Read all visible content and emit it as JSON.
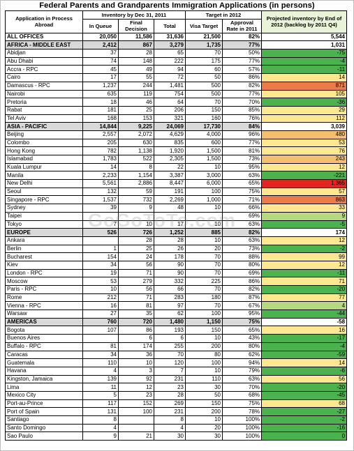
{
  "title": "Federal Parents and Grandparents Immigration Applications  (in persons)",
  "watermark": "GoGoToTo.com",
  "header": {
    "col_app": "Application in Process Abroad",
    "group_inventory": "Inventory by Dec 31, 2011",
    "group_target": "Target in 2012",
    "proj_title": "Projected inventory by End of 2012 (backlog by 2011 Q4)",
    "in_queue": "In Queue",
    "final_decision": "Final Decision",
    "total": "Total",
    "visa_target": "Visa Target",
    "approval_rate": "Approval Rate in 2011"
  },
  "colors": {
    "green": "#4ab34e",
    "light_green": "#b7d97c",
    "yellow": "#fde88f",
    "orange": "#f6bf6d",
    "dark_orange": "#ec7b49",
    "red": "#e52421",
    "group_gray": "#d9d9d9"
  },
  "rows": [
    {
      "type": "all",
      "office": "ALL OFFICES",
      "queue": "20,050",
      "final": "11,586",
      "total": "31,636",
      "target": "21,500",
      "rate": "82%",
      "proj": "5,544",
      "color": "#ffffff"
    },
    {
      "type": "group",
      "office": "AFRICA - MIDDLE EAST",
      "queue": "2,412",
      "final": "867",
      "total": "3,279",
      "target": "1,735",
      "rate": "77%",
      "proj": "1,031",
      "color": "#ffffff"
    },
    {
      "type": "row",
      "office": "Abidjan",
      "queue": "37",
      "final": "28",
      "total": "65",
      "target": "70",
      "rate": "50%",
      "proj": "-75",
      "color": "#4ab34e"
    },
    {
      "type": "row",
      "office": "Abu Dhabi",
      "queue": "74",
      "final": "148",
      "total": "222",
      "target": "175",
      "rate": "77%",
      "proj": "-4",
      "color": "#4ab34e"
    },
    {
      "type": "row",
      "office": "Accra - RPC",
      "queue": "45",
      "final": "49",
      "total": "94",
      "target": "60",
      "rate": "57%",
      "proj": "-11",
      "color": "#4ab34e"
    },
    {
      "type": "row",
      "office": "Cairo",
      "queue": "17",
      "final": "55",
      "total": "72",
      "target": "50",
      "rate": "86%",
      "proj": "14",
      "color": "#fde88f"
    },
    {
      "type": "row",
      "office": "Damascus - RPC",
      "queue": "1,237",
      "final": "244",
      "total": "1,481",
      "target": "500",
      "rate": "82%",
      "proj": "871",
      "color": "#ec7b49"
    },
    {
      "type": "row",
      "office": "Nairobi",
      "queue": "635",
      "final": "119",
      "total": "754",
      "target": "500",
      "rate": "77%",
      "proj": "105",
      "color": "#fde88f"
    },
    {
      "type": "row",
      "office": "Pretoria",
      "queue": "18",
      "final": "46",
      "total": "64",
      "target": "70",
      "rate": "70%",
      "proj": "-36",
      "color": "#4ab34e"
    },
    {
      "type": "row",
      "office": "Rabat",
      "queue": "181",
      "final": "25",
      "total": "206",
      "target": "150",
      "rate": "85%",
      "proj": "29",
      "color": "#fde88f"
    },
    {
      "type": "row",
      "office": "Tel Aviv",
      "queue": "168",
      "final": "153",
      "total": "321",
      "target": "160",
      "rate": "76%",
      "proj": "112",
      "color": "#fde88f"
    },
    {
      "type": "group",
      "office": "ASIA - PACIFIC",
      "queue": "14,844",
      "final": "9,225",
      "total": "24,069",
      "target": "17,730",
      "rate": "84%",
      "proj": "3,039",
      "color": "#ffffff"
    },
    {
      "type": "row",
      "office": "Beijing",
      "queue": "2,557",
      "final": "2,072",
      "total": "4,629",
      "target": "4,000",
      "rate": "96%",
      "proj": "480",
      "color": "#f6bf6d"
    },
    {
      "type": "row",
      "office": "Colombo",
      "queue": "205",
      "final": "630",
      "total": "835",
      "target": "600",
      "rate": "77%",
      "proj": "53",
      "color": "#fde88f"
    },
    {
      "type": "row",
      "office": "Hong Kong",
      "queue": "782",
      "final": "1,138",
      "total": "1,920",
      "target": "1,500",
      "rate": "81%",
      "proj": "76",
      "color": "#fde88f"
    },
    {
      "type": "row",
      "office": "Islamabad",
      "queue": "1,783",
      "final": "522",
      "total": "2,305",
      "target": "1,500",
      "rate": "73%",
      "proj": "243",
      "color": "#f6bf6d"
    },
    {
      "type": "row",
      "office": "Kuala Lumpur",
      "queue": "14",
      "final": "8",
      "total": "22",
      "target": "10",
      "rate": "95%",
      "proj": "12",
      "color": "#fde88f"
    },
    {
      "type": "row",
      "office": "Manila",
      "queue": "2,233",
      "final": "1,154",
      "total": "3,387",
      "target": "3,000",
      "rate": "63%",
      "proj": "-221",
      "color": "#4ab34e"
    },
    {
      "type": "row",
      "office": "New Delhi",
      "queue": "5,561",
      "final": "2,886",
      "total": "8,447",
      "target": "6,000",
      "rate": "65%",
      "proj": "1,365",
      "color": "#e52421"
    },
    {
      "type": "row",
      "office": "Seoul",
      "queue": "132",
      "final": "59",
      "total": "191",
      "target": "100",
      "rate": "75%",
      "proj": "57",
      "color": "#fde88f"
    },
    {
      "type": "row",
      "office": "Singapore - RPC",
      "queue": "1,537",
      "final": "732",
      "total": "2,269",
      "target": "1,000",
      "rate": "71%",
      "proj": "863",
      "color": "#ec7b49"
    },
    {
      "type": "row",
      "office": "Sydney",
      "queue": "39",
      "final": "9",
      "total": "48",
      "target": "10",
      "rate": "66%",
      "proj": "33",
      "color": "#fde88f"
    },
    {
      "type": "row",
      "office": "Taipei",
      "queue": "",
      "final": "",
      "total": "",
      "target": "",
      "rate": "69%",
      "proj": "9",
      "color": "#b7d97c"
    },
    {
      "type": "row",
      "office": "Tokyo",
      "queue": "7",
      "final": "10",
      "total": "17",
      "target": "10",
      "rate": "63%",
      "proj": "-5",
      "color": "#4ab34e"
    },
    {
      "type": "group",
      "office": "EUROPE",
      "queue": "526",
      "final": "726",
      "total": "1,252",
      "target": "885",
      "rate": "82%",
      "proj": "174",
      "color": "#ffffff"
    },
    {
      "type": "row",
      "office": "Ankara",
      "queue": "",
      "final": "28",
      "total": "28",
      "target": "10",
      "rate": "63%",
      "proj": "12",
      "color": "#fde88f"
    },
    {
      "type": "row",
      "office": "Berlin",
      "queue": "1",
      "final": "25",
      "total": "26",
      "target": "20",
      "rate": "73%",
      "proj": "-2",
      "color": "#4ab34e"
    },
    {
      "type": "row",
      "office": "Bucharest",
      "queue": "154",
      "final": "24",
      "total": "178",
      "target": "70",
      "rate": "88%",
      "proj": "99",
      "color": "#fde88f"
    },
    {
      "type": "row",
      "office": "Kiev",
      "queue": "34",
      "final": "56",
      "total": "90",
      "target": "70",
      "rate": "80%",
      "proj": "12",
      "color": "#fde88f"
    },
    {
      "type": "row",
      "office": "London - RPC",
      "queue": "19",
      "final": "71",
      "total": "90",
      "target": "70",
      "rate": "69%",
      "proj": "-11",
      "color": "#4ab34e"
    },
    {
      "type": "row",
      "office": "Moscow",
      "queue": "53",
      "final": "279",
      "total": "332",
      "target": "225",
      "rate": "86%",
      "proj": "71",
      "color": "#fde88f"
    },
    {
      "type": "row",
      "office": "Paris - RPC",
      "queue": "10",
      "final": "56",
      "total": "66",
      "target": "70",
      "rate": "82%",
      "proj": "-20",
      "color": "#4ab34e"
    },
    {
      "type": "row",
      "office": "Rome",
      "queue": "212",
      "final": "71",
      "total": "283",
      "target": "180",
      "rate": "87%",
      "proj": "77",
      "color": "#fde88f"
    },
    {
      "type": "row",
      "office": "Vienna - RPC",
      "queue": "16",
      "final": "81",
      "total": "97",
      "target": "70",
      "rate": "67%",
      "proj": "4",
      "color": "#b7d97c"
    },
    {
      "type": "row",
      "office": "Warsaw",
      "queue": "27",
      "final": "35",
      "total": "62",
      "target": "100",
      "rate": "95%",
      "proj": "-44",
      "color": "#4ab34e"
    },
    {
      "type": "group",
      "office": "AMERICAS",
      "queue": "760",
      "final": "720",
      "total": "1,480",
      "target": "1,150",
      "rate": "75%",
      "proj": "-58",
      "color": "#ffffff"
    },
    {
      "type": "row",
      "office": "Bogota",
      "queue": "107",
      "final": "86",
      "total": "193",
      "target": "150",
      "rate": "65%",
      "proj": "16",
      "color": "#fde88f"
    },
    {
      "type": "row",
      "office": "Buenos Aires",
      "queue": "",
      "final": "6",
      "total": "6",
      "target": "10",
      "rate": "43%",
      "proj": "-17",
      "color": "#4ab34e"
    },
    {
      "type": "row",
      "office": "Buffalo - RPC",
      "queue": "81",
      "final": "174",
      "total": "255",
      "target": "200",
      "rate": "80%",
      "proj": "-4",
      "color": "#4ab34e"
    },
    {
      "type": "row",
      "office": "Caracas",
      "queue": "34",
      "final": "36",
      "total": "70",
      "target": "80",
      "rate": "62%",
      "proj": "-59",
      "color": "#4ab34e"
    },
    {
      "type": "row",
      "office": "Guatemala",
      "queue": "110",
      "final": "10",
      "total": "120",
      "target": "100",
      "rate": "94%",
      "proj": "14",
      "color": "#fde88f"
    },
    {
      "type": "row",
      "office": "Havana",
      "queue": "4",
      "final": "3",
      "total": "7",
      "target": "10",
      "rate": "79%",
      "proj": "-6",
      "color": "#4ab34e"
    },
    {
      "type": "row",
      "office": "Kingston, Jamaica",
      "queue": "139",
      "final": "92",
      "total": "231",
      "target": "110",
      "rate": "63%",
      "proj": "56",
      "color": "#fde88f"
    },
    {
      "type": "row",
      "office": "Lima",
      "queue": "11",
      "final": "12",
      "total": "23",
      "target": "30",
      "rate": "70%",
      "proj": "-20",
      "color": "#4ab34e"
    },
    {
      "type": "row",
      "office": "Mexico City",
      "queue": "5",
      "final": "23",
      "total": "28",
      "target": "50",
      "rate": "68%",
      "proj": "-45",
      "color": "#4ab34e"
    },
    {
      "type": "row",
      "office": "Port-au-Prince",
      "queue": "117",
      "final": "152",
      "total": "269",
      "target": "150",
      "rate": "75%",
      "proj": "68",
      "color": "#fde88f"
    },
    {
      "type": "row",
      "office": "Port of Spain",
      "queue": "131",
      "final": "100",
      "total": "231",
      "target": "200",
      "rate": "78%",
      "proj": "-27",
      "color": "#4ab34e"
    },
    {
      "type": "row",
      "office": "Santiago",
      "queue": "8",
      "final": "",
      "total": "8",
      "target": "10",
      "rate": "100%",
      "proj": "-2",
      "color": "#4ab34e"
    },
    {
      "type": "row",
      "office": "Santo Domingo",
      "queue": "4",
      "final": "",
      "total": "4",
      "target": "20",
      "rate": "100%",
      "proj": "-16",
      "color": "#4ab34e"
    },
    {
      "type": "row",
      "office": "Sao Paulo",
      "queue": "9",
      "final": "21",
      "total": "30",
      "target": "30",
      "rate": "100%",
      "proj": "0",
      "color": "#4ab34e"
    }
  ]
}
